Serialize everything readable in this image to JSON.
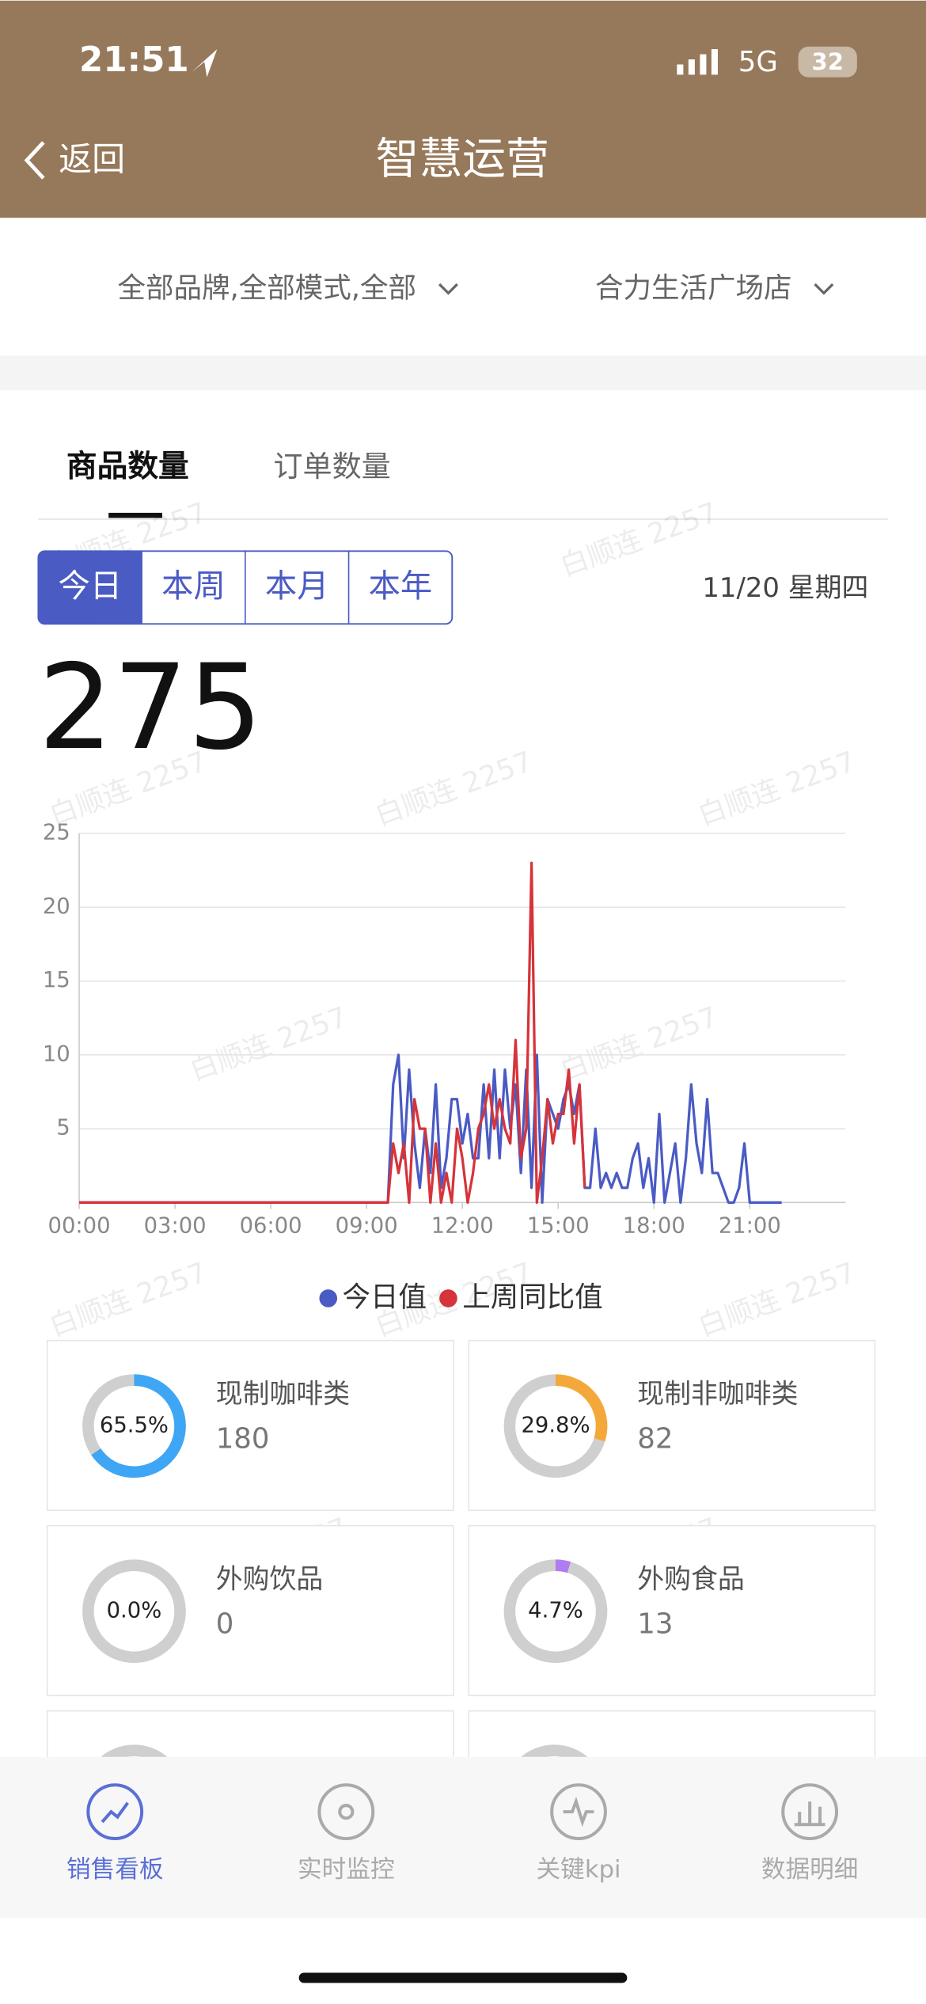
{
  "status": {
    "time": "21:51",
    "network": "5G",
    "battery": "32"
  },
  "nav": {
    "back": "返回",
    "title": "智慧运营"
  },
  "filters": [
    "全部品牌,全部模式,全部",
    "合力生活广场店"
  ],
  "tabs": [
    "商品数量",
    "订单数量"
  ],
  "periods": [
    "今日",
    "本周",
    "本月",
    "本年"
  ],
  "date": "11/20 星期四",
  "total": 275,
  "watermark": "白顺连 2257",
  "chart_data": {
    "type": "line",
    "x": [
      0,
      570,
      580,
      590,
      600,
      610,
      620,
      630,
      640,
      650,
      660,
      670,
      680,
      690,
      700,
      710,
      720,
      730,
      740,
      750,
      760,
      770,
      780,
      790,
      800,
      810,
      820,
      830,
      840,
      850,
      860,
      870,
      880,
      890,
      900,
      910,
      920,
      930,
      940,
      950,
      960,
      970,
      980,
      990,
      1000,
      1010,
      1020,
      1030,
      1040,
      1050,
      1060,
      1070,
      1080,
      1090,
      1100,
      1110,
      1120,
      1130,
      1140,
      1150,
      1160,
      1170,
      1180,
      1190,
      1200,
      1210,
      1220,
      1230,
      1240,
      1250,
      1260,
      1270,
      1280,
      1290,
      1300,
      1310,
      1320
    ],
    "xlim": [
      0,
      1440
    ],
    "xticks": [
      {
        "value": 0,
        "label": "00:00"
      },
      {
        "value": 180,
        "label": "03:00"
      },
      {
        "value": 360,
        "label": "06:00"
      },
      {
        "value": 540,
        "label": "09:00"
      },
      {
        "value": 720,
        "label": "12:00"
      },
      {
        "value": 900,
        "label": "15:00"
      },
      {
        "value": 1080,
        "label": "18:00"
      },
      {
        "value": 1260,
        "label": "21:00"
      }
    ],
    "ylim": [
      0,
      25
    ],
    "yticks": [
      5,
      10,
      15,
      20,
      25
    ],
    "grid": true,
    "series": [
      {
        "name": "今日值",
        "color": "#4a5bc4",
        "values": [
          0,
          0,
          0,
          8,
          10,
          3,
          9,
          4,
          1,
          5,
          2,
          8,
          1,
          3,
          7,
          7,
          4,
          6,
          3,
          3,
          8,
          3,
          9,
          3,
          9,
          5,
          8,
          2,
          9,
          1,
          10,
          0,
          7,
          6,
          5,
          7,
          8,
          6,
          8,
          1,
          1,
          5,
          1,
          2,
          1,
          2,
          1,
          1,
          3,
          4,
          1,
          3,
          0,
          6,
          0,
          2,
          4,
          0,
          3,
          8,
          4,
          2,
          7,
          2,
          2,
          1,
          0,
          0,
          1,
          4,
          0,
          0,
          0,
          0,
          0,
          0,
          0
        ]
      },
      {
        "name": "上周同比值",
        "color": "#d6333a",
        "values": [
          0,
          0,
          0,
          4,
          2,
          4,
          0,
          7,
          5,
          5,
          0,
          4,
          0,
          2,
          0,
          5,
          3,
          0,
          2,
          5,
          6,
          8,
          5,
          7,
          5,
          4,
          11,
          3,
          5,
          23,
          0,
          3,
          7,
          4,
          6,
          6,
          9,
          4,
          8,
          1,
          null,
          null,
          null,
          null,
          null,
          null,
          null,
          null,
          null,
          null,
          null,
          null,
          null,
          null,
          null,
          null,
          null,
          null,
          null,
          null,
          null,
          null,
          null,
          null,
          null,
          null,
          null,
          null,
          null,
          null,
          null,
          null,
          null,
          null,
          null,
          null,
          null
        ]
      }
    ]
  },
  "cards": [
    {
      "name": "现制咖啡类",
      "percent": 65.5,
      "percent_label": "65.5%",
      "count": 180,
      "color": "#3ea6f5"
    },
    {
      "name": "现制非咖啡类",
      "percent": 29.8,
      "percent_label": "29.8%",
      "count": 82,
      "color": "#f5a83a"
    },
    {
      "name": "外购饮品",
      "percent": 0.0,
      "percent_label": "0.0%",
      "count": 0,
      "color": "#b07cf0"
    },
    {
      "name": "外购食品",
      "percent": 4.7,
      "percent_label": "4.7%",
      "count": 13,
      "color": "#b07cf0"
    }
  ],
  "tabbar": [
    "销售看板",
    "实时监控",
    "关键kpi",
    "数据明细"
  ]
}
